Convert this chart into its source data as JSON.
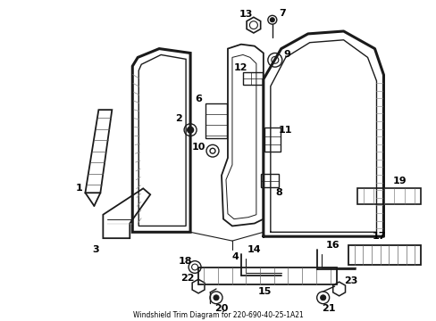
{
  "title": "Windshield Trim Diagram for 220-690-40-25-1A21",
  "background_color": "#ffffff",
  "line_color": "#1a1a1a",
  "text_color": "#000000",
  "fig_width": 4.89,
  "fig_height": 3.6,
  "dpi": 100
}
